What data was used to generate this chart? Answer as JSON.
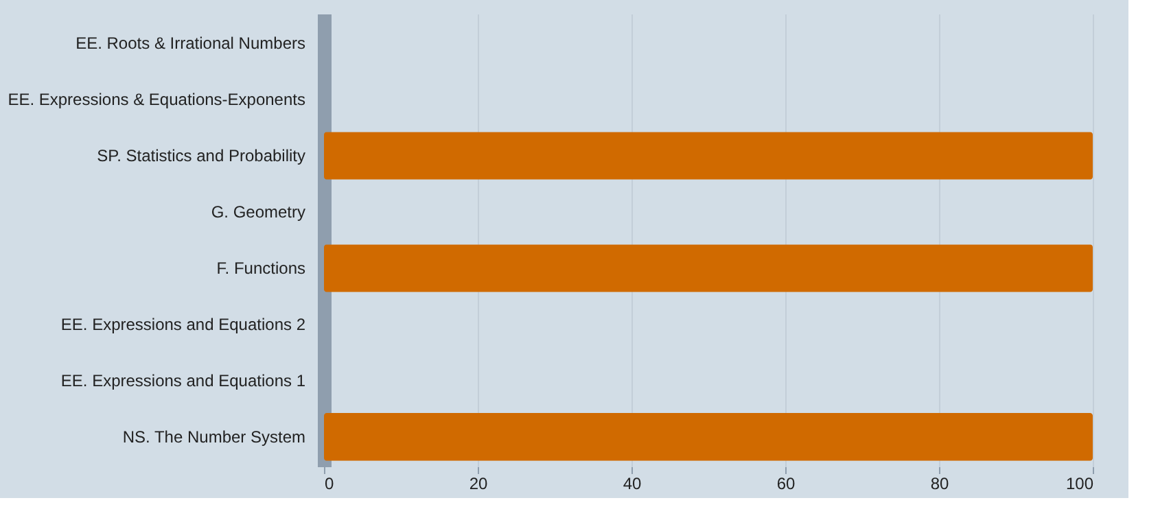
{
  "chart_data": {
    "type": "bar",
    "orientation": "horizontal",
    "categories": [
      "EE. Roots & Irrational Numbers",
      "EE. Expressions & Equations-Exponents",
      "SP.  Statistics and Probability",
      "G.  Geometry",
      "F.  Functions",
      "EE.  Expressions and Equations 2",
      "EE.  Expressions and Equations 1",
      "NS.  The Number System"
    ],
    "values": [
      0,
      0,
      100,
      0,
      100,
      0,
      0,
      100
    ],
    "color": "#d06a00",
    "xlim": [
      0,
      100
    ],
    "xticks": [
      0,
      20,
      40,
      60,
      80,
      100
    ],
    "grid": "x"
  }
}
